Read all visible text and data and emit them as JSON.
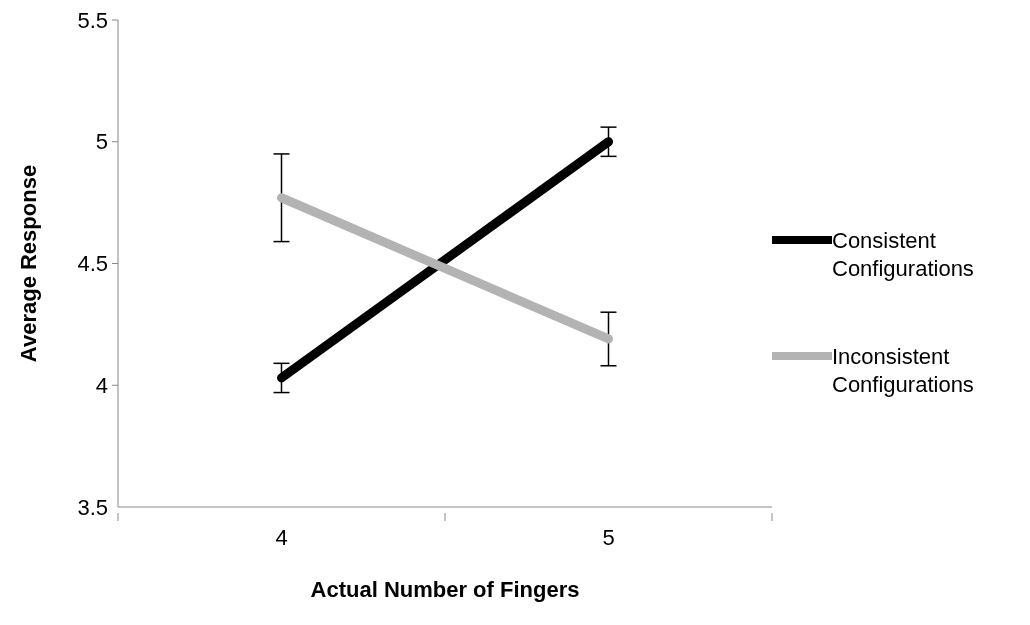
{
  "chart_data": {
    "type": "line",
    "xlabel": "Actual Number of Fingers",
    "ylabel": "Average Response",
    "x": [
      4,
      5
    ],
    "xlim": [
      3.5,
      5.5
    ],
    "xticks": [
      {
        "value": 3.5,
        "label": null
      },
      4,
      {
        "value": 4.5,
        "label": null
      },
      5,
      {
        "value": 5.5,
        "label": null
      }
    ],
    "series": [
      {
        "name": "Consistent Configurations",
        "color": "#000000",
        "values": [
          4.03,
          5.0
        ],
        "errors": [
          0.06,
          0.06
        ]
      },
      {
        "name": "Inconsistent Configurations",
        "color": "#b3b3b3",
        "values": [
          4.77,
          4.19
        ],
        "errors": [
          0.18,
          0.11
        ]
      }
    ],
    "ylim": [
      3.5,
      5.5
    ],
    "yticks": [
      3.5,
      4,
      4.5,
      5,
      5.5
    ],
    "grid": false,
    "legend": "right",
    "marker": "none",
    "line_style": "solid"
  }
}
